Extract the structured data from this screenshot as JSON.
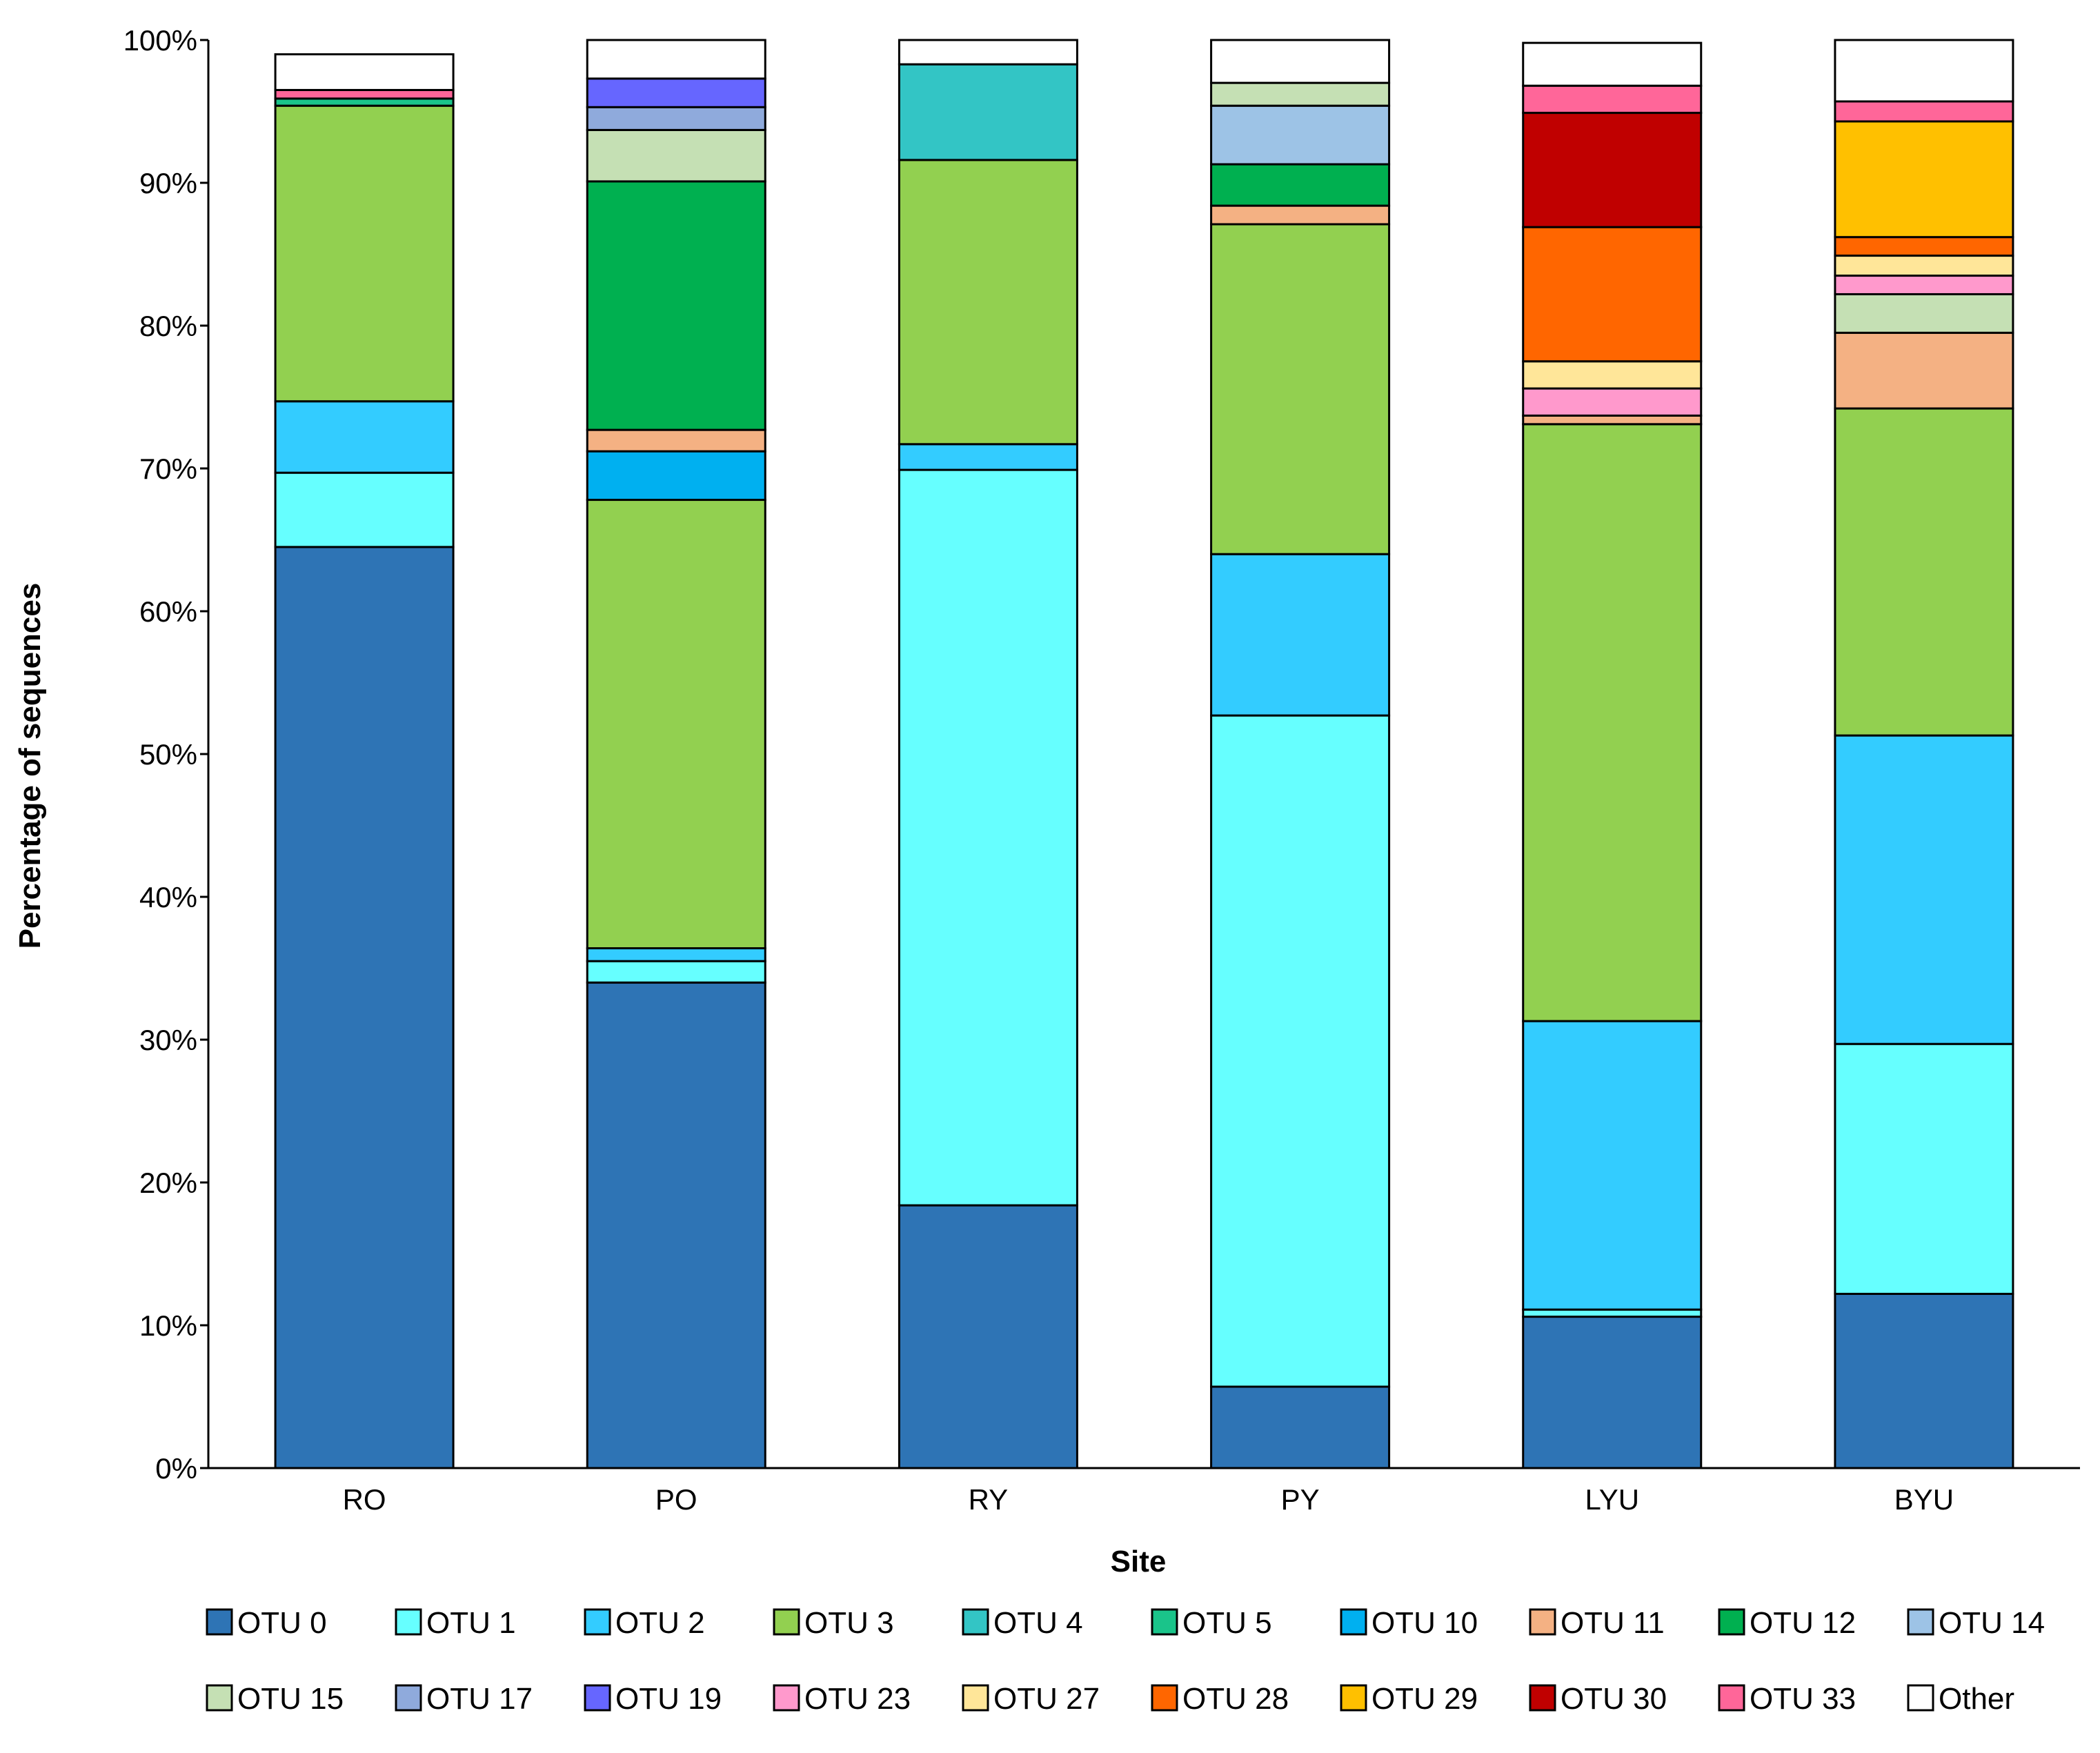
{
  "chart_data": {
    "type": "bar",
    "stacked": true,
    "title": "",
    "xlabel": "Site",
    "ylabel": "Percentage of sequences",
    "ylim": [
      0,
      100
    ],
    "y_ticks": [
      "0%",
      "10%",
      "20%",
      "30%",
      "40%",
      "50%",
      "60%",
      "70%",
      "80%",
      "90%",
      "100%"
    ],
    "grid": false,
    "legend_position": "bottom",
    "categories": [
      "RO",
      "PO",
      "RY",
      "PY",
      "LYU",
      "BYU"
    ],
    "series": [
      {
        "name": "OTU 0",
        "color": "#2e74b5",
        "values": [
          64.5,
          34.0,
          18.4,
          5.7,
          10.6,
          12.2
        ]
      },
      {
        "name": "OTU 1",
        "color": "#66ffff",
        "values": [
          5.2,
          1.5,
          51.5,
          47.0,
          0.5,
          17.5
        ]
      },
      {
        "name": "OTU 2",
        "color": "#33ccff",
        "values": [
          5.0,
          0.9,
          1.8,
          11.3,
          20.2,
          21.6
        ]
      },
      {
        "name": "OTU 3",
        "color": "#92d050",
        "values": [
          20.7,
          31.4,
          19.9,
          23.1,
          41.8,
          22.9
        ]
      },
      {
        "name": "OTU 4",
        "color": "#33c5c5",
        "values": [
          0.0,
          0.0,
          6.7,
          0.0,
          0.0,
          0.0
        ]
      },
      {
        "name": "OTU 5",
        "color": "#1ac48a",
        "values": [
          0.5,
          0.0,
          0.0,
          0.0,
          0.0,
          0.0
        ]
      },
      {
        "name": "OTU 10",
        "color": "#00b0f0",
        "values": [
          0.0,
          3.4,
          0.0,
          0.0,
          0.0,
          0.0
        ]
      },
      {
        "name": "OTU 11",
        "color": "#f4b183",
        "values": [
          0.0,
          1.5,
          0.0,
          1.3,
          0.6,
          5.3
        ]
      },
      {
        "name": "OTU 12",
        "color": "#00b050",
        "values": [
          0.0,
          17.4,
          0.0,
          2.9,
          0.0,
          0.0
        ]
      },
      {
        "name": "OTU 14",
        "color": "#9dc3e6",
        "values": [
          0.0,
          0.0,
          0.0,
          4.1,
          0.0,
          0.0
        ]
      },
      {
        "name": "OTU 15",
        "color": "#c5e0b4",
        "values": [
          0.0,
          3.6,
          0.0,
          1.6,
          0.0,
          2.7
        ]
      },
      {
        "name": "OTU 17",
        "color": "#8faadc",
        "values": [
          0.0,
          1.6,
          0.0,
          0.0,
          0.0,
          0.0
        ]
      },
      {
        "name": "OTU 19",
        "color": "#6666ff",
        "values": [
          0.0,
          2.0,
          0.0,
          0.0,
          0.0,
          0.0
        ]
      },
      {
        "name": "OTU 23",
        "color": "#ff99cc",
        "values": [
          0.0,
          0.0,
          0.0,
          0.0,
          1.9,
          1.3
        ]
      },
      {
        "name": "OTU 27",
        "color": "#ffe699",
        "values": [
          0.0,
          0.0,
          0.0,
          0.0,
          1.9,
          1.4
        ]
      },
      {
        "name": "OTU 28",
        "color": "#ff6600",
        "values": [
          0.0,
          0.0,
          0.0,
          0.0,
          9.4,
          1.3
        ]
      },
      {
        "name": "OTU 29",
        "color": "#ffc000",
        "values": [
          0.0,
          0.0,
          0.0,
          0.0,
          0.0,
          8.1
        ]
      },
      {
        "name": "OTU 30",
        "color": "#c00000",
        "values": [
          0.0,
          0.0,
          0.0,
          0.0,
          8.0,
          0.0
        ]
      },
      {
        "name": "OTU 33",
        "color": "#ff6699",
        "values": [
          0.6,
          0.0,
          0.0,
          0.0,
          1.9,
          1.4
        ]
      },
      {
        "name": "Other",
        "color": "#ffffff",
        "values": [
          2.5,
          2.7,
          1.7,
          3.0,
          3.0,
          4.3
        ]
      }
    ]
  }
}
